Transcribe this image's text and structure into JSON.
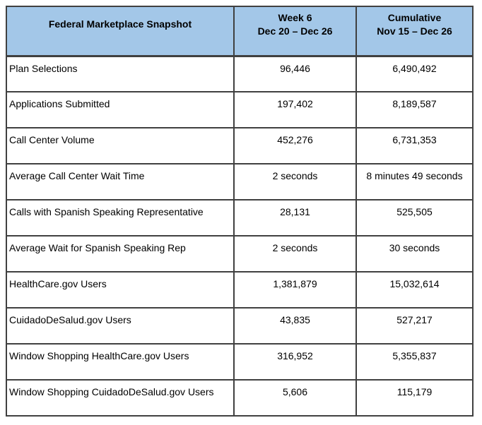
{
  "table": {
    "title": "Federal Marketplace Snapshot",
    "columns": {
      "week": {
        "line1": "Week 6",
        "line2": "Dec 20 – Dec 26"
      },
      "cumulative": {
        "line1": "Cumulative",
        "line2": "Nov 15 – Dec 26"
      }
    },
    "rows": [
      {
        "label": "Plan Selections",
        "week": "96,446",
        "cumulative": "6,490,492"
      },
      {
        "label": "Applications Submitted",
        "week": "197,402",
        "cumulative": "8,189,587"
      },
      {
        "label": "Call Center Volume",
        "week": "452,276",
        "cumulative": "6,731,353"
      },
      {
        "label": "Average Call Center Wait Time",
        "week": "2 seconds",
        "cumulative": "8 minutes 49 seconds"
      },
      {
        "label": "Calls with Spanish Speaking Representative",
        "week": "28,131",
        "cumulative": "525,505"
      },
      {
        "label": "Average Wait for Spanish Speaking Rep",
        "week": "2 seconds",
        "cumulative": "30 seconds"
      },
      {
        "label": "HealthCare.gov Users",
        "week": "1,381,879",
        "cumulative": "15,032,614"
      },
      {
        "label": "CuidadoDeSalud.gov Users",
        "week": "43,835",
        "cumulative": "527,217"
      },
      {
        "label": "Window Shopping HealthCare.gov Users",
        "week": "316,952",
        "cumulative": "5,355,837"
      },
      {
        "label": "Window Shopping CuidadoDeSalud.gov Users",
        "week": "5,606",
        "cumulative": "115,179"
      }
    ],
    "colors": {
      "header_bg": "#a3c7e8",
      "border": "#404040",
      "text": "#000000"
    }
  }
}
